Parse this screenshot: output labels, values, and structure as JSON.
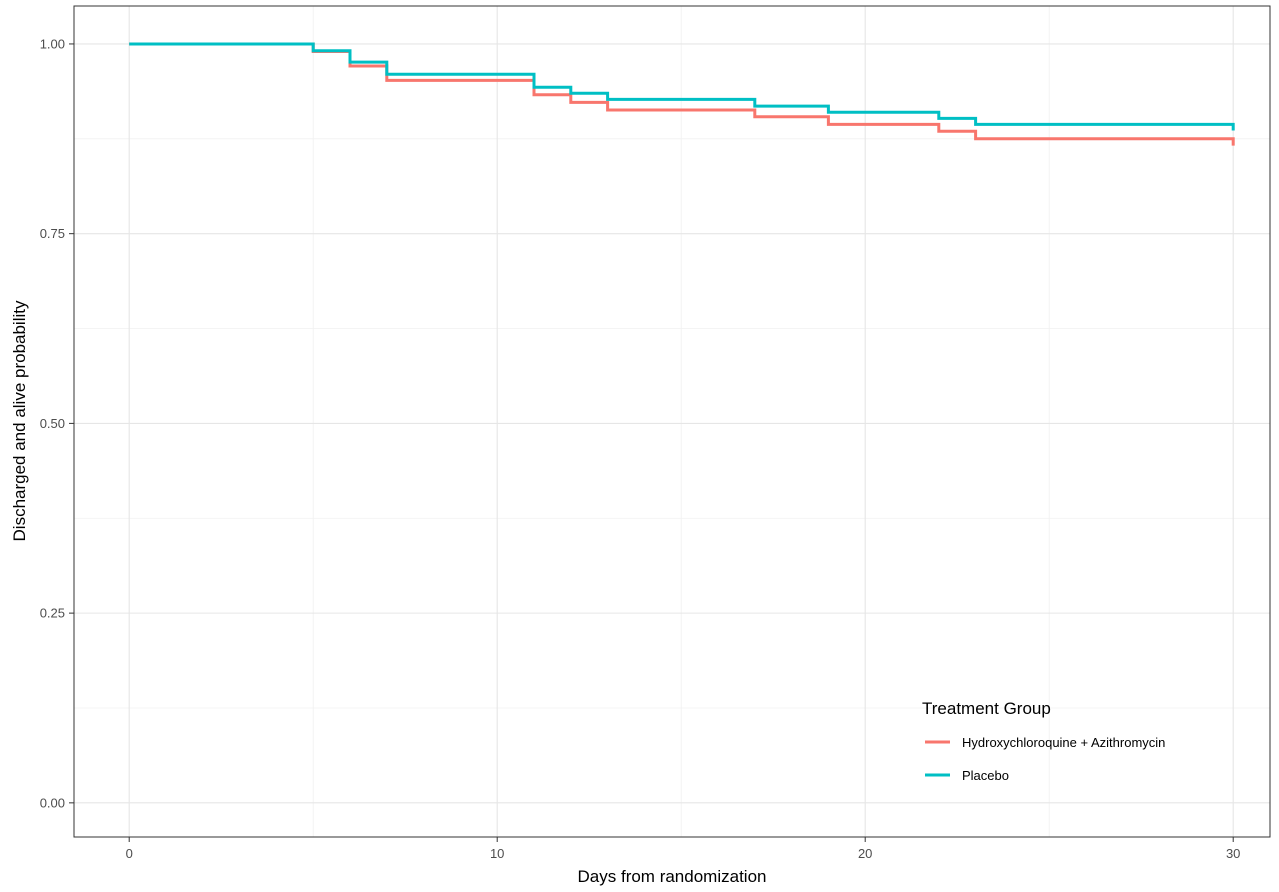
{
  "chart_data": {
    "type": "line",
    "title": "",
    "xlabel": "Days from randomization",
    "ylabel": "Discharged and alive probability",
    "xlim": [
      -1.5,
      31.0
    ],
    "ylim": [
      -0.045,
      1.05
    ],
    "x_ticks": [
      0,
      10,
      20,
      30
    ],
    "x_tick_labels": [
      "0",
      "10",
      "20",
      "30"
    ],
    "y_ticks": [
      0.0,
      0.25,
      0.5,
      0.75,
      1.0
    ],
    "y_tick_labels": [
      "0.00",
      "0.25",
      "0.50",
      "0.75",
      "1.00"
    ],
    "grid": true,
    "legend": {
      "title": "Treatment Group",
      "placement": "bottom-right inside"
    },
    "series": [
      {
        "name": "Hydroxychloroquine + Azithromycin",
        "color": "#F8766D",
        "step": true,
        "x": [
          0,
          5,
          6,
          7,
          11,
          12,
          13,
          17,
          19,
          22,
          23,
          30
        ],
        "y": [
          1.0,
          0.99,
          0.971,
          0.952,
          0.933,
          0.923,
          0.913,
          0.904,
          0.894,
          0.885,
          0.875,
          0.866
        ]
      },
      {
        "name": "Placebo",
        "color": "#00BFC4",
        "step": true,
        "x": [
          0,
          5,
          6,
          7,
          11,
          12,
          13,
          17,
          19,
          22,
          23,
          30
        ],
        "y": [
          1.0,
          0.991,
          0.976,
          0.96,
          0.943,
          0.935,
          0.927,
          0.918,
          0.91,
          0.902,
          0.894,
          0.886
        ]
      }
    ]
  }
}
